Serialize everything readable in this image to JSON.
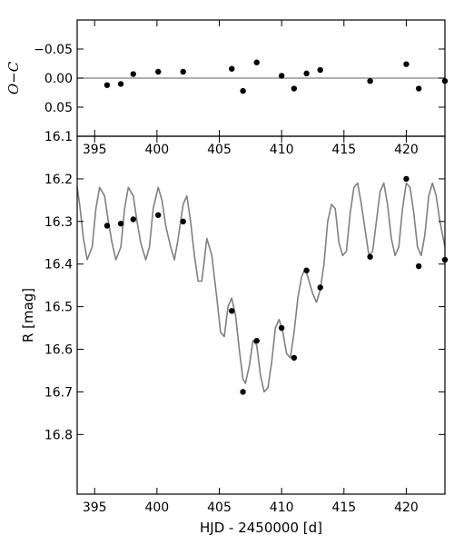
{
  "chart_data": [
    {
      "type": "scatter",
      "panel": "O-C residuals",
      "ylabel": "O−C",
      "xlim": [
        393.6,
        423.1
      ],
      "ylim": [
        0.1,
        -0.1
      ],
      "inverted_y": true,
      "reference_line": 0.0,
      "xticks": [
        {
          "value": 395,
          "label": "395"
        },
        {
          "value": 400,
          "label": "400"
        },
        {
          "value": 405,
          "label": "405"
        },
        {
          "value": 410,
          "label": "410"
        },
        {
          "value": 415,
          "label": "415"
        },
        {
          "value": 420,
          "label": "420"
        }
      ],
      "yticks": [
        {
          "value": -0.05,
          "label": "−0.05"
        },
        {
          "value": 0.0,
          "label": "0.00"
        },
        {
          "value": 0.05,
          "label": "0.05"
        }
      ],
      "series": [
        {
          "x": [
            396.0,
            397.1,
            398.1,
            400.1,
            402.1,
            406.0,
            406.9,
            408.0,
            410.0,
            411.0,
            412.0,
            413.1,
            417.1,
            420.0,
            421.0,
            423.1
          ],
          "y": [
            0.012,
            0.01,
            -0.007,
            -0.011,
            -0.011,
            -0.016,
            0.022,
            -0.027,
            -0.004,
            0.018,
            -0.008,
            -0.014,
            0.005,
            -0.024,
            0.018,
            0.005
          ]
        }
      ],
      "colors": {
        "points": "#000000",
        "reference_line": "#808080"
      }
    },
    {
      "type": "line",
      "panel": "light curve",
      "xlabel": "HJD - 2450000 [d]",
      "ylabel": "R [mag]",
      "xlim": [
        393.6,
        423.1
      ],
      "ylim": [
        16.94,
        16.1
      ],
      "inverted_y": true,
      "xticks": [
        {
          "value": 395,
          "label": "395"
        },
        {
          "value": 400,
          "label": "400"
        },
        {
          "value": 405,
          "label": "405"
        },
        {
          "value": 410,
          "label": "410"
        },
        {
          "value": 415,
          "label": "415"
        },
        {
          "value": 420,
          "label": "420"
        }
      ],
      "yticks": [
        {
          "value": 16.1,
          "label": "16.1"
        },
        {
          "value": 16.2,
          "label": "16.2"
        },
        {
          "value": 16.3,
          "label": "16.3"
        },
        {
          "value": 16.4,
          "label": "16.4"
        },
        {
          "value": 16.5,
          "label": "16.5"
        },
        {
          "value": 16.6,
          "label": "16.6"
        },
        {
          "value": 16.7,
          "label": "16.7"
        },
        {
          "value": 16.8,
          "label": "16.8"
        }
      ],
      "series": [
        {
          "style": "line",
          "x": [
            393.6,
            393.8,
            394.1,
            394.4,
            394.8,
            395.1,
            395.4,
            395.8,
            396.1,
            396.4,
            396.7,
            397.1,
            397.4,
            397.7,
            398.1,
            398.4,
            398.7,
            399.1,
            399.4,
            399.7,
            400.1,
            400.4,
            400.7,
            401.1,
            401.4,
            401.7,
            402.1,
            402.4,
            402.7,
            403.0,
            403.3,
            403.6,
            404.0,
            404.4,
            404.8,
            405.1,
            405.4,
            405.7,
            406.0,
            406.3,
            406.6,
            406.9,
            407.1,
            407.4,
            407.7,
            408.0,
            408.3,
            408.6,
            408.9,
            409.2,
            409.5,
            409.8,
            410.1,
            410.4,
            410.7,
            411.0,
            411.3,
            411.6,
            411.9,
            412.2,
            412.5,
            412.8,
            413.1,
            413.4,
            413.7,
            414.0,
            414.3,
            414.6,
            414.9,
            415.2,
            415.5,
            415.8,
            416.1,
            416.4,
            416.7,
            417.0,
            417.3,
            417.6,
            417.9,
            418.2,
            418.5,
            418.8,
            419.1,
            419.4,
            419.7,
            420.0,
            420.3,
            420.6,
            420.9,
            421.2,
            421.5,
            421.8,
            422.1,
            422.4,
            422.7,
            423.1
          ],
          "y": [
            16.22,
            16.26,
            16.34,
            16.39,
            16.36,
            16.27,
            16.22,
            16.24,
            16.3,
            16.35,
            16.39,
            16.36,
            16.27,
            16.22,
            16.24,
            16.3,
            16.35,
            16.39,
            16.36,
            16.27,
            16.22,
            16.25,
            16.31,
            16.36,
            16.39,
            16.34,
            16.26,
            16.24,
            16.3,
            16.38,
            16.44,
            16.44,
            16.34,
            16.38,
            16.48,
            16.56,
            16.57,
            16.5,
            16.48,
            16.52,
            16.6,
            16.67,
            16.68,
            16.64,
            16.58,
            16.59,
            16.66,
            16.7,
            16.69,
            16.63,
            16.55,
            16.53,
            16.56,
            16.61,
            16.62,
            16.56,
            16.48,
            16.43,
            16.41,
            16.44,
            16.47,
            16.49,
            16.46,
            16.4,
            16.3,
            16.26,
            16.27,
            16.35,
            16.38,
            16.37,
            16.28,
            16.22,
            16.21,
            16.26,
            16.32,
            16.38,
            16.37,
            16.3,
            16.23,
            16.21,
            16.26,
            16.34,
            16.38,
            16.36,
            16.27,
            16.21,
            16.22,
            16.28,
            16.36,
            16.38,
            16.33,
            16.24,
            16.21,
            16.24,
            16.3,
            16.36
          ]
        },
        {
          "style": "points",
          "x": [
            396.0,
            397.1,
            398.1,
            400.1,
            402.1,
            406.0,
            406.9,
            408.0,
            410.0,
            411.0,
            412.0,
            413.1,
            417.1,
            420.0,
            421.0,
            423.1
          ],
          "y": [
            16.31,
            16.305,
            16.295,
            16.285,
            16.3,
            16.51,
            16.7,
            16.58,
            16.55,
            16.62,
            16.415,
            16.455,
            16.383,
            16.2,
            16.405,
            16.39
          ]
        }
      ],
      "colors": {
        "model_line": "#808080",
        "points": "#000000"
      }
    }
  ]
}
